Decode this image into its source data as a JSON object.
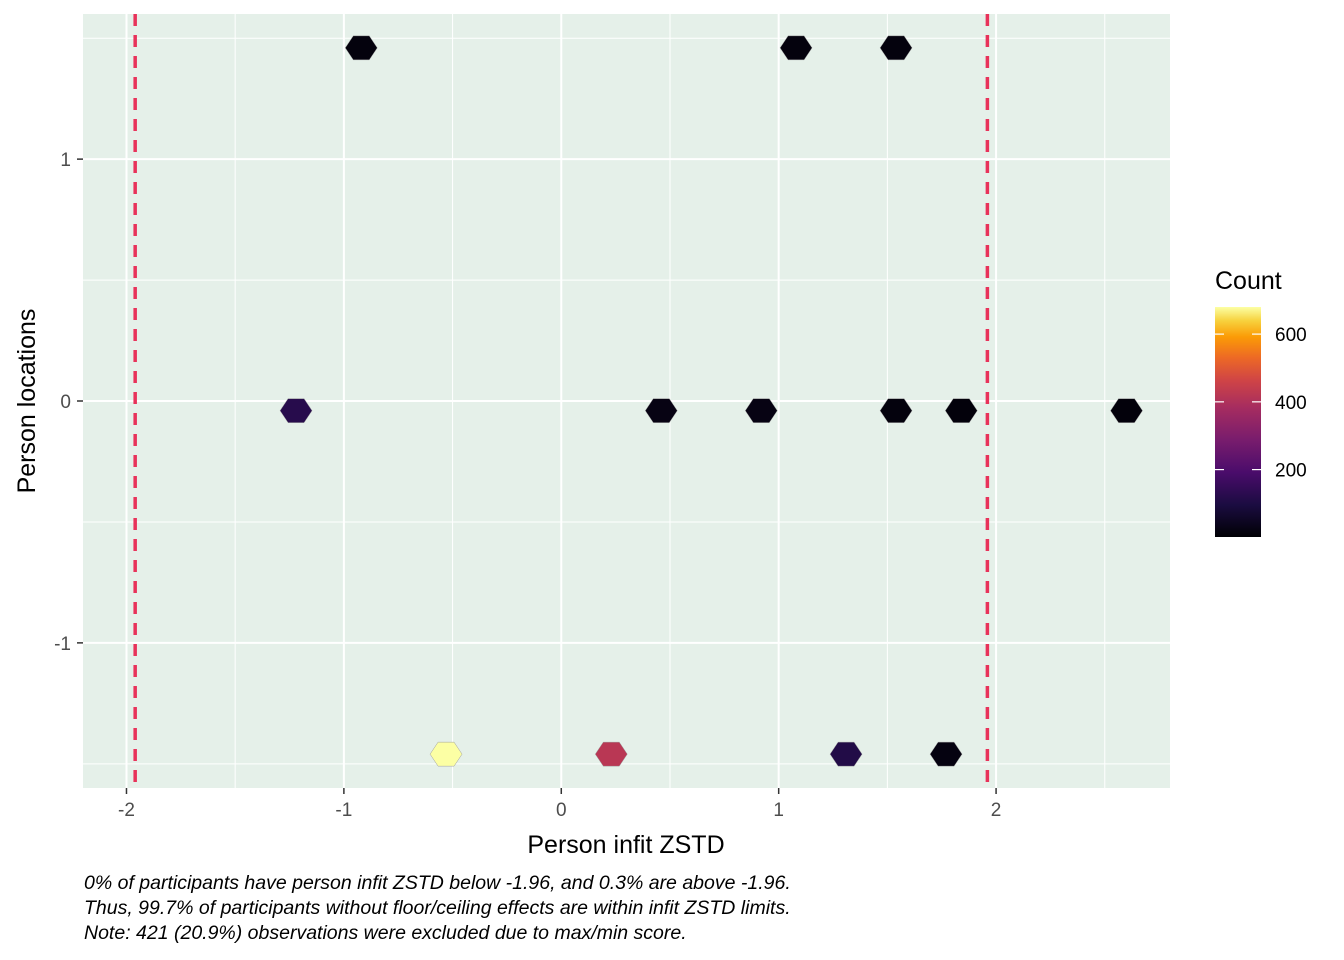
{
  "chart_data": {
    "type": "hexbin",
    "xlabel": "Person infit ZSTD",
    "ylabel": "Person locations",
    "xlim": [
      -2.2,
      2.8
    ],
    "ylim": [
      -1.6,
      1.6
    ],
    "x_ticks": [
      -2,
      -1,
      0,
      1,
      2
    ],
    "y_ticks": [
      -1,
      0,
      1
    ],
    "grid": true,
    "panel_background": "#e5f0e9",
    "reference_lines": {
      "x": [
        -1.96,
        1.96
      ],
      "color": "#e8325a",
      "style": "dashed"
    },
    "legend": {
      "title": "Count",
      "placement": "right",
      "ticks": [
        200,
        400,
        600
      ],
      "range": [
        1,
        680
      ],
      "colormap": "inferno"
    },
    "bins": [
      {
        "x": -0.92,
        "y": 1.46,
        "count": 15
      },
      {
        "x": 1.08,
        "y": 1.46,
        "count": 15
      },
      {
        "x": 1.54,
        "y": 1.46,
        "count": 15
      },
      {
        "x": -1.22,
        "y": -0.04,
        "count": 120
      },
      {
        "x": 0.46,
        "y": -0.04,
        "count": 25
      },
      {
        "x": 0.92,
        "y": -0.04,
        "count": 25
      },
      {
        "x": 1.54,
        "y": -0.04,
        "count": 15
      },
      {
        "x": 1.84,
        "y": -0.04,
        "count": 12
      },
      {
        "x": 2.6,
        "y": -0.04,
        "count": 12
      },
      {
        "x": -0.53,
        "y": -1.46,
        "count": 680
      },
      {
        "x": 0.23,
        "y": -1.46,
        "count": 420
      },
      {
        "x": 1.31,
        "y": -1.46,
        "count": 110
      },
      {
        "x": 1.77,
        "y": -1.46,
        "count": 20
      }
    ]
  },
  "caption": {
    "line1": "0% of participants have person infit ZSTD below -1.96, and 0.3% are above -1.96.",
    "line2": "Thus, 99.7% of participants without floor/ceiling effects are within infit ZSTD limits.",
    "line3": "Note: 421 (20.9%) observations were excluded due to max/min score."
  }
}
